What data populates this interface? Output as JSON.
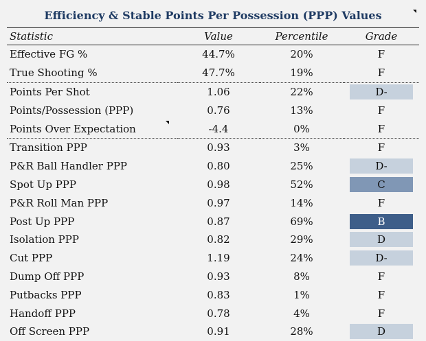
{
  "title": "Efficiency & Stable Points Per Possession (PPP) Values",
  "headers": {
    "statistic": "Statistic",
    "value": "Value",
    "percentile": "Percentile",
    "grade": "Grade"
  },
  "grade_colors": {
    "F": "transparent",
    "D-": "#c6d1dd",
    "D": "#c6d1dd",
    "C": "#8097b5",
    "B": "#3e5e89"
  },
  "rows": [
    {
      "stat": "Effective FG %",
      "value": "44.7%",
      "percentile": "20%",
      "grade": "F"
    },
    {
      "stat": "True Shooting %",
      "value": "47.7%",
      "percentile": "19%",
      "grade": "F"
    },
    {
      "stat": "Points Per Shot",
      "value": "1.06",
      "percentile": "22%",
      "grade": "D-"
    },
    {
      "stat": "Points/Possession (PPP)",
      "value": "0.76",
      "percentile": "13%",
      "grade": "F"
    },
    {
      "stat": "Points Over Expectation",
      "value": "-4.4",
      "percentile": "0%",
      "grade": "F"
    },
    {
      "stat": "Transition PPP",
      "value": "0.93",
      "percentile": "3%",
      "grade": "F"
    },
    {
      "stat": "P&R Ball Handler PPP",
      "value": "0.80",
      "percentile": "25%",
      "grade": "D-"
    },
    {
      "stat": "Spot Up PPP",
      "value": "0.98",
      "percentile": "52%",
      "grade": "C"
    },
    {
      "stat": "P&R Roll Man PPP",
      "value": "0.97",
      "percentile": "14%",
      "grade": "F"
    },
    {
      "stat": "Post Up PPP",
      "value": "0.87",
      "percentile": "69%",
      "grade": "B"
    },
    {
      "stat": "Isolation PPP",
      "value": "0.82",
      "percentile": "29%",
      "grade": "D"
    },
    {
      "stat": "Cut PPP",
      "value": "1.19",
      "percentile": "24%",
      "grade": "D-"
    },
    {
      "stat": "Dump Off PPP",
      "value": "0.93",
      "percentile": "8%",
      "grade": "F"
    },
    {
      "stat": "Putbacks PPP",
      "value": "0.83",
      "percentile": "1%",
      "grade": "F"
    },
    {
      "stat": "Handoff PPP",
      "value": "0.78",
      "percentile": "4%",
      "grade": "F"
    },
    {
      "stat": "Off Screen PPP",
      "value": "0.91",
      "percentile": "28%",
      "grade": "D"
    }
  ]
}
